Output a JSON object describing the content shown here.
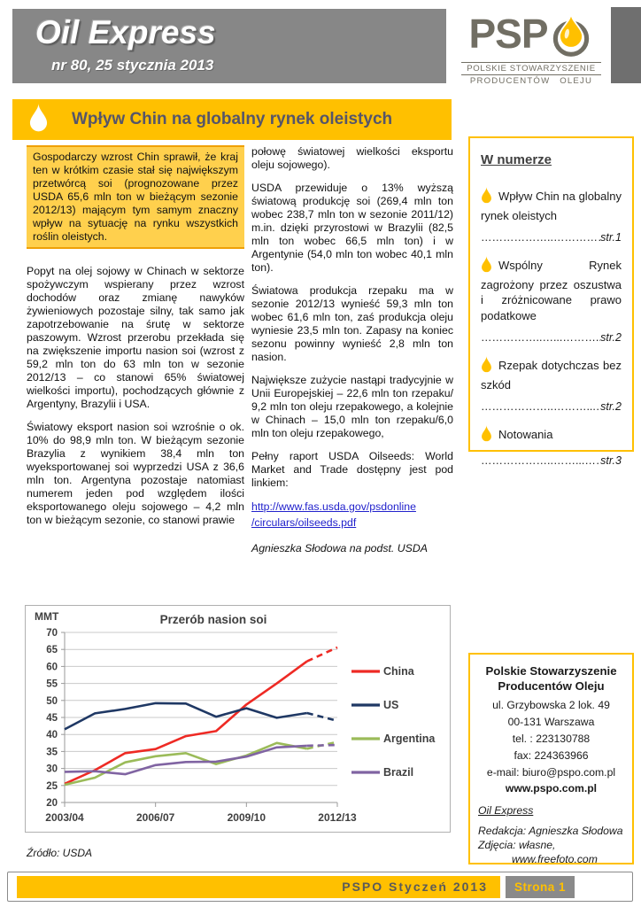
{
  "colors": {
    "accent": "#FFC000",
    "header_gray": "#878787",
    "link_blue": "#2222CC"
  },
  "header": {
    "title": "Oil Express",
    "issue": "nr 80, 25 stycznia 2013"
  },
  "logo": {
    "letters": "PSP",
    "line1": "POLSKIE STOWARZYSZENIE",
    "line2": "PRODUCENTÓW OLEJU"
  },
  "article": {
    "title": "Wpływ Chin na globalny rynek oleistych",
    "lead": "Gospodarczy wzrost Chin sprawił, że kraj ten w krótkim czasie stał się największym przetwórcą soi (prognozowane przez USDA 65,6 mln ton w bieżącym sezonie 2012/13) mającym tym samym znaczny wpływ na sytuację na rynku wszystkich roślin oleistych.",
    "col1": [
      "Popyt na olej sojowy w Chinach w sektorze spożywczym wspierany przez wzrost dochodów oraz zmianę nawyków żywieniowych pozostaje silny, tak samo jak zapotrzebowanie na śrutę w sektorze paszowym. Wzrost przerobu przekłada się na zwiększenie importu nasion soi (wzrost z 59,2 mln ton do 63 mln ton w sezonie 2012/13 – co stanowi 65% światowej wielkości importu), pochodzących głównie z Argentyny, Brazylii i USA.",
      "Światowy eksport nasion soi wzrośnie o ok. 10% do 98,9 mln ton. W bieżącym sezonie Brazylia z wynikiem 38,4 mln ton wyeksportowanej soi wyprzedzi USA z 36,6 mln ton. Argentyna pozostaje natomiast numerem jeden pod względem ilości eksportowanego oleju sojowego – 4,2 mln ton w bieżącym sezonie, co stanowi prawie"
    ],
    "col2": [
      "połowę światowej wielkości eksportu oleju sojowego).",
      "USDA przewiduje o 13% wyższą światową produkcję soi (269,4 mln ton wobec 238,7 mln ton w sezonie 2011/12) m.in. dzięki przyrostowi w Brazylii (82,5 mln ton wobec 66,5 mln ton) i w Argentynie (54,0 mln ton wobec 40,1 mln ton).",
      "Światowa produkcja rzepaku ma w sezonie 2012/13 wynieść 59,3 mln ton wobec 61,6 mln ton, zaś produkcja oleju wyniesie 23,5 mln ton. Zapasy na koniec sezonu powinny wynieść 2,8 mln ton nasion.",
      "Największe zużycie nastąpi tradycyjnie w Unii Europejskiej – 22,6 mln ton rzepaku/ 9,2 mln ton oleju rzepakowego, a kolejnie w Chinach – 15,0 mln ton rzepaku/6,0 mln ton oleju rzepakowego,",
      "Pełny raport USDA Oilseeds: World Market and Trade dostępny jest pod linkiem:"
    ],
    "link_line1": "http://www.fas.usda.gov/psdonline",
    "link_line2": "/circulars/oilseeds.pdf",
    "byline": "Agnieszka Słodowa na podst. USDA"
  },
  "toc": {
    "title": "W numerze",
    "items": [
      {
        "label": "Wpływ Chin na globalny rynek oleistych",
        "dots": "………………..……………...........................",
        "page": "str.1"
      },
      {
        "label": "Wspólny Rynek zagrożony przez oszustwa i zróżnicowane prawo podatkowe",
        "dots": "……………..…...………..........................",
        "page": "str.2"
      },
      {
        "label": "Rzepak dotychczas bez szkód",
        "dots": "………………..………...………….............",
        "page": "str.2"
      },
      {
        "label": "Notowania",
        "dots": "………………..……...…………….............",
        "page": "str.3"
      }
    ]
  },
  "chart_data": {
    "type": "line",
    "title": "Przerób nasion soi",
    "ylabel": "MMT",
    "ylim": [
      20,
      70
    ],
    "ytick_step": 5,
    "grid": true,
    "legend_position": "right",
    "categories": [
      "2003/04",
      "2004/05",
      "2005/06",
      "2006/07",
      "2007/08",
      "2008/09",
      "2009/10",
      "2010/11",
      "2011/12",
      "2012/13"
    ],
    "visible_x_labels": [
      "2003/04",
      "2006/07",
      "2009/10",
      "2012/13"
    ],
    "dashed_from_index": 8,
    "series": [
      {
        "name": "China",
        "color": "#EE2A24",
        "values": [
          25.5,
          29.5,
          34.5,
          35.7,
          39.5,
          41.0,
          48.8,
          55.0,
          61.5,
          65.6
        ]
      },
      {
        "name": "US",
        "color": "#1F3864",
        "values": [
          41.5,
          46.2,
          47.5,
          49.2,
          49.1,
          45.2,
          47.7,
          44.9,
          46.3,
          44.0
        ]
      },
      {
        "name": "Argentina",
        "color": "#9BBB59",
        "values": [
          25.2,
          27.3,
          31.8,
          33.6,
          34.5,
          31.3,
          33.8,
          37.5,
          35.8,
          37.8
        ]
      },
      {
        "name": "Brazil",
        "color": "#8064A2",
        "values": [
          29.0,
          29.2,
          28.3,
          31.0,
          31.9,
          32.0,
          33.5,
          36.2,
          36.7,
          36.9
        ]
      }
    ],
    "source": "Źródło: USDA"
  },
  "source_note": "Źródło: USDA",
  "contact": {
    "name_line1": "Polskie Stowarzyszenie",
    "name_line2": "Producentów Oleju",
    "lines": [
      "ul. Grzybowska 2 lok. 49",
      "00-131 Warszawa",
      "tel. : 223130788",
      "fax: 224363966",
      "e-mail: biuro@pspo.com.pl"
    ],
    "website": "www.pspo.com.pl",
    "newsletter_name": "Oil Express",
    "credits": [
      "Redakcja: Agnieszka Słodowa",
      "Zdjęcia: własne,",
      "www.freefoto.com"
    ]
  },
  "footer": {
    "issue_label": "PSPO Styczeń 2013",
    "page_label": "Strona 1"
  }
}
